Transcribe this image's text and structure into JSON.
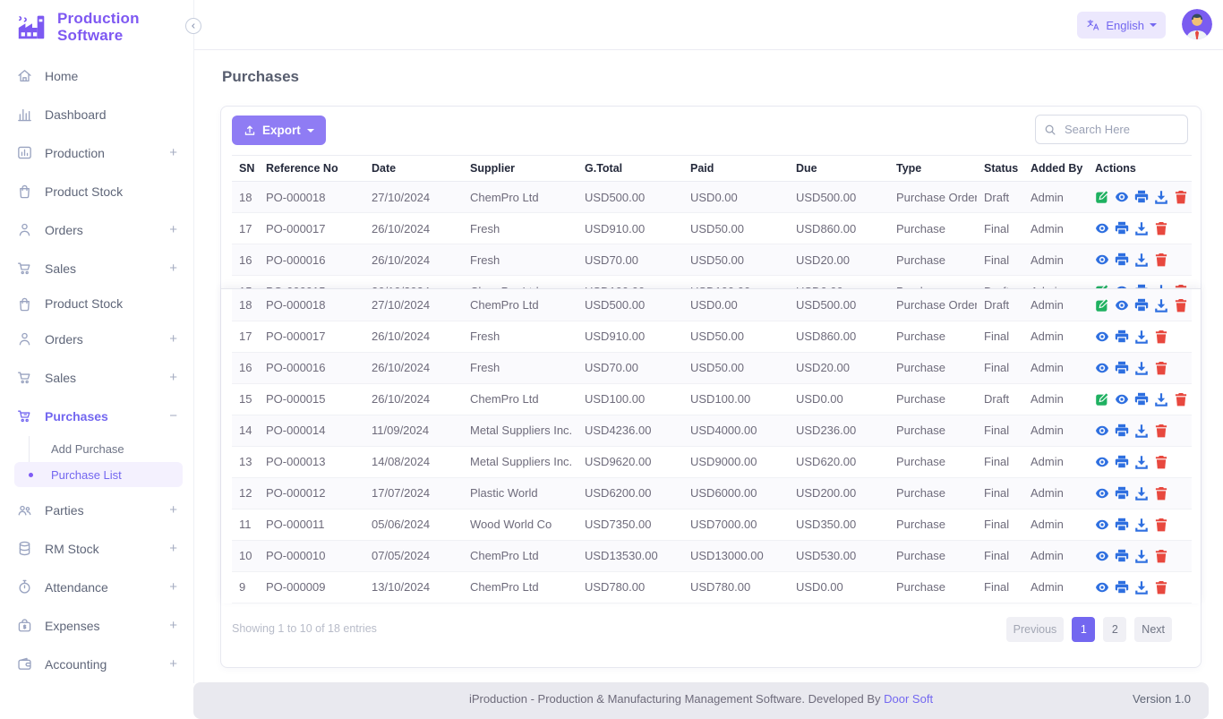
{
  "brand": {
    "name_line1": "Production",
    "name_line2": "Software"
  },
  "topbar": {
    "language": "English"
  },
  "sidebar": {
    "items": [
      {
        "label": "Home",
        "icon": "home-icon",
        "suffix": ""
      },
      {
        "label": "Dashboard",
        "icon": "dashboard-icon",
        "suffix": ""
      },
      {
        "label": "Production",
        "icon": "production-icon",
        "suffix": "+"
      },
      {
        "label": "Product Stock",
        "icon": "product-stock-icon",
        "suffix": ""
      },
      {
        "label": "Orders",
        "icon": "orders-icon",
        "suffix": "+"
      },
      {
        "label": "Sales",
        "icon": "sales-icon",
        "suffix": "+"
      },
      {
        "label": "Product Stock",
        "icon": "product-stock-icon",
        "suffix": "",
        "tight": true
      },
      {
        "label": "Orders",
        "icon": "orders-icon",
        "suffix": "+"
      },
      {
        "label": "Sales",
        "icon": "sales-icon",
        "suffix": "+"
      },
      {
        "label": "Purchases",
        "icon": "purchases-icon",
        "suffix": "−",
        "active": true,
        "submenu": [
          {
            "label": "Add Purchase"
          },
          {
            "label": "Purchase List",
            "active": true
          }
        ]
      },
      {
        "label": "Parties",
        "icon": "parties-icon",
        "suffix": "+"
      },
      {
        "label": "RM Stock",
        "icon": "rm-stock-icon",
        "suffix": "+"
      },
      {
        "label": "Attendance",
        "icon": "attendance-icon",
        "suffix": "+"
      },
      {
        "label": "Expenses",
        "icon": "expenses-icon",
        "suffix": "+"
      },
      {
        "label": "Accounting",
        "icon": "accounting-icon",
        "suffix": "+"
      }
    ]
  },
  "page": {
    "title": "Purchases"
  },
  "toolbar": {
    "export_label": "Export",
    "search_placeholder": "Search Here"
  },
  "table": {
    "columns": [
      "SN",
      "Reference No",
      "Date",
      "Supplier",
      "G.Total",
      "Paid",
      "Due",
      "Type",
      "Status",
      "Added By",
      "Actions"
    ],
    "behind_rows_count": 4,
    "rows": [
      {
        "sn": "18",
        "reference_no": "PO-000018",
        "date": "27/10/2024",
        "supplier": "ChemPro Ltd",
        "g_total": "USD500.00",
        "paid": "USD0.00",
        "due": "USD500.00",
        "type": "Purchase Order",
        "status": "Draft",
        "added_by": "Admin",
        "actions": [
          "edit",
          "view",
          "print",
          "download",
          "delete"
        ]
      },
      {
        "sn": "17",
        "reference_no": "PO-000017",
        "date": "26/10/2024",
        "supplier": "Fresh",
        "g_total": "USD910.00",
        "paid": "USD50.00",
        "due": "USD860.00",
        "type": "Purchase",
        "status": "Final",
        "added_by": "Admin",
        "actions": [
          "view",
          "print",
          "download",
          "delete"
        ]
      },
      {
        "sn": "16",
        "reference_no": "PO-000016",
        "date": "26/10/2024",
        "supplier": "Fresh",
        "g_total": "USD70.00",
        "paid": "USD50.00",
        "due": "USD20.00",
        "type": "Purchase",
        "status": "Final",
        "added_by": "Admin",
        "actions": [
          "view",
          "print",
          "download",
          "delete"
        ]
      },
      {
        "sn": "15",
        "reference_no": "PO-000015",
        "date": "26/10/2024",
        "supplier": "ChemPro Ltd",
        "g_total": "USD100.00",
        "paid": "USD100.00",
        "due": "USD0.00",
        "type": "Purchase",
        "status": "Draft",
        "added_by": "Admin",
        "actions": [
          "edit",
          "view",
          "print",
          "download",
          "delete"
        ]
      },
      {
        "sn": "14",
        "reference_no": "PO-000014",
        "date": "11/09/2024",
        "supplier": "Metal Suppliers Inc.",
        "g_total": "USD4236.00",
        "paid": "USD4000.00",
        "due": "USD236.00",
        "type": "Purchase",
        "status": "Final",
        "added_by": "Admin",
        "actions": [
          "view",
          "print",
          "download",
          "delete"
        ]
      },
      {
        "sn": "13",
        "reference_no": "PO-000013",
        "date": "14/08/2024",
        "supplier": "Metal Suppliers Inc.",
        "g_total": "USD9620.00",
        "paid": "USD9000.00",
        "due": "USD620.00",
        "type": "Purchase",
        "status": "Final",
        "added_by": "Admin",
        "actions": [
          "view",
          "print",
          "download",
          "delete"
        ]
      },
      {
        "sn": "12",
        "reference_no": "PO-000012",
        "date": "17/07/2024",
        "supplier": "Plastic World",
        "g_total": "USD6200.00",
        "paid": "USD6000.00",
        "due": "USD200.00",
        "type": "Purchase",
        "status": "Final",
        "added_by": "Admin",
        "actions": [
          "view",
          "print",
          "download",
          "delete"
        ]
      },
      {
        "sn": "11",
        "reference_no": "PO-000011",
        "date": "05/06/2024",
        "supplier": "Wood World Co",
        "g_total": "USD7350.00",
        "paid": "USD7000.00",
        "due": "USD350.00",
        "type": "Purchase",
        "status": "Final",
        "added_by": "Admin",
        "actions": [
          "view",
          "print",
          "download",
          "delete"
        ]
      },
      {
        "sn": "10",
        "reference_no": "PO-000010",
        "date": "07/05/2024",
        "supplier": "ChemPro Ltd",
        "g_total": "USD13530.00",
        "paid": "USD13000.00",
        "due": "USD530.00",
        "type": "Purchase",
        "status": "Final",
        "added_by": "Admin",
        "actions": [
          "view",
          "print",
          "download",
          "delete"
        ]
      },
      {
        "sn": "9",
        "reference_no": "PO-000009",
        "date": "13/10/2024",
        "supplier": "ChemPro Ltd",
        "g_total": "USD780.00",
        "paid": "USD780.00",
        "due": "USD0.00",
        "type": "Purchase",
        "status": "Final",
        "added_by": "Admin",
        "actions": [
          "view",
          "print",
          "download",
          "delete"
        ]
      }
    ]
  },
  "pagination": {
    "summary": "Showing 1 to 10 of 18 entries",
    "previous_label": "Previous",
    "pages": [
      "1",
      "2"
    ],
    "active_page": "1",
    "next_label": "Next"
  },
  "footer": {
    "text": "iProduction - Production & Manufacturing Management Software. Developed By ",
    "link_label": "Door Soft",
    "version": "Version 1.0"
  },
  "colors": {
    "accent": "#7367f0",
    "export_button": "#8f7cf4",
    "edit_icon": "#1fb161",
    "blue_icon": "#2e6fe0",
    "delete_icon": "#e8483e"
  }
}
